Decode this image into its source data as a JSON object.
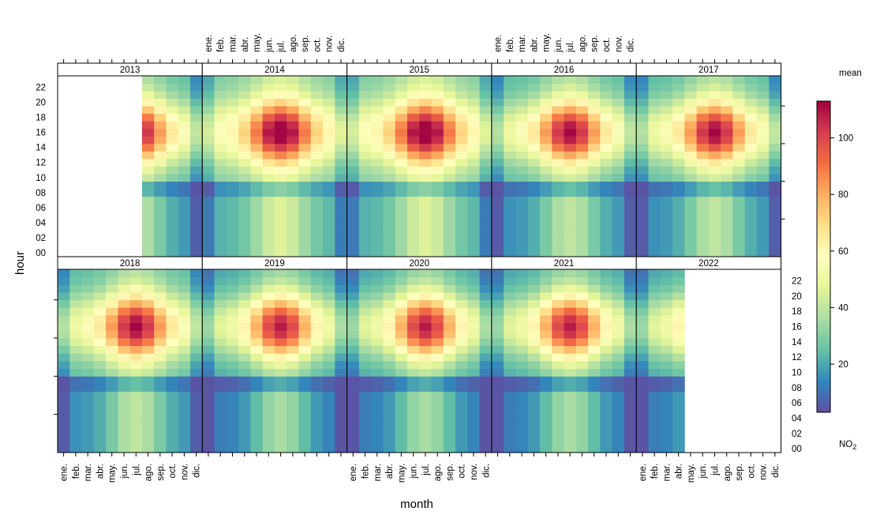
{
  "chart_data": {
    "type": "heatmap",
    "xlabel": "month",
    "ylabel": "hour",
    "month_labels": [
      "ene.",
      "feb.",
      "mar.",
      "abr.",
      "may.",
      "jun.",
      "jul.",
      "ago.",
      "sep.",
      "oct.",
      "nov.",
      "dic."
    ],
    "hour_labels": [
      "00",
      "02",
      "04",
      "06",
      "08",
      "10",
      "12",
      "14",
      "16",
      "18",
      "20",
      "22"
    ],
    "legend": {
      "title": "mean",
      "subtitle": "NO",
      "subtitle_sub": "2",
      "ticks": [
        20,
        40,
        60,
        80,
        100
      ],
      "range": [
        3,
        113
      ],
      "colors": [
        "#5E4FA2",
        "#3288BD",
        "#66C2A5",
        "#ABDDA4",
        "#E6F598",
        "#FFFFBF",
        "#FEE08B",
        "#FDAE61",
        "#F46D43",
        "#D53E4F",
        "#9E0142"
      ]
    },
    "panels": [
      {
        "year": "2013",
        "months": [
          8,
          9,
          10,
          11,
          12
        ]
      },
      {
        "year": "2014",
        "months": [
          1,
          2,
          3,
          4,
          5,
          6,
          7,
          8,
          9,
          10,
          11,
          12
        ]
      },
      {
        "year": "2015",
        "months": [
          1,
          2,
          3,
          4,
          5,
          6,
          7,
          8,
          9,
          10,
          11,
          12
        ]
      },
      {
        "year": "2016",
        "months": [
          1,
          2,
          3,
          4,
          5,
          6,
          7,
          8,
          9,
          10,
          11,
          12
        ]
      },
      {
        "year": "2017",
        "months": [
          1,
          2,
          3,
          4,
          5,
          6,
          7,
          8,
          9,
          10,
          11,
          12
        ]
      },
      {
        "year": "2018",
        "months": [
          1,
          2,
          3,
          4,
          5,
          6,
          7,
          8,
          9,
          10,
          11,
          12
        ]
      },
      {
        "year": "2019",
        "months": [
          1,
          2,
          3,
          4,
          5,
          6,
          7,
          8,
          9,
          10,
          11,
          12
        ]
      },
      {
        "year": "2020",
        "months": [
          1,
          2,
          3,
          4,
          5,
          6,
          7,
          8,
          9,
          10,
          11,
          12
        ]
      },
      {
        "year": "2021",
        "months": [
          1,
          2,
          3,
          4,
          5,
          6,
          7,
          8,
          9,
          10,
          11,
          12
        ]
      },
      {
        "year": "2022",
        "months": [
          1,
          2,
          3,
          4
        ]
      }
    ]
  }
}
